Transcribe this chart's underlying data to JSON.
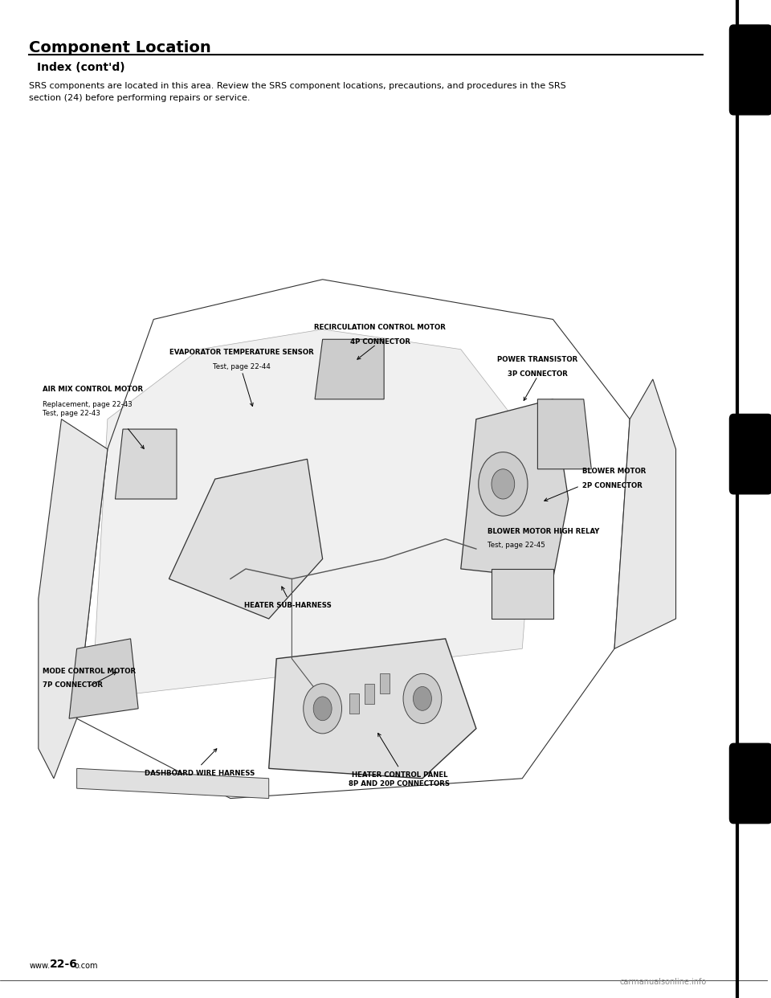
{
  "page_title": "Component Location",
  "section_title": "Index (cont’d)",
  "description_line1": "SRS components are located in this area. Review the SRS component locations, precautions, and procedures in the SRS",
  "description_line2": "section (24) before performing repairs or service.",
  "footer_prefix": "www.",
  "footer_page": "22-6",
  "footer_suffix": "o.com",
  "footer_right": "carmanualsonline.info",
  "bg_color": "#ffffff",
  "text_color": "#000000"
}
